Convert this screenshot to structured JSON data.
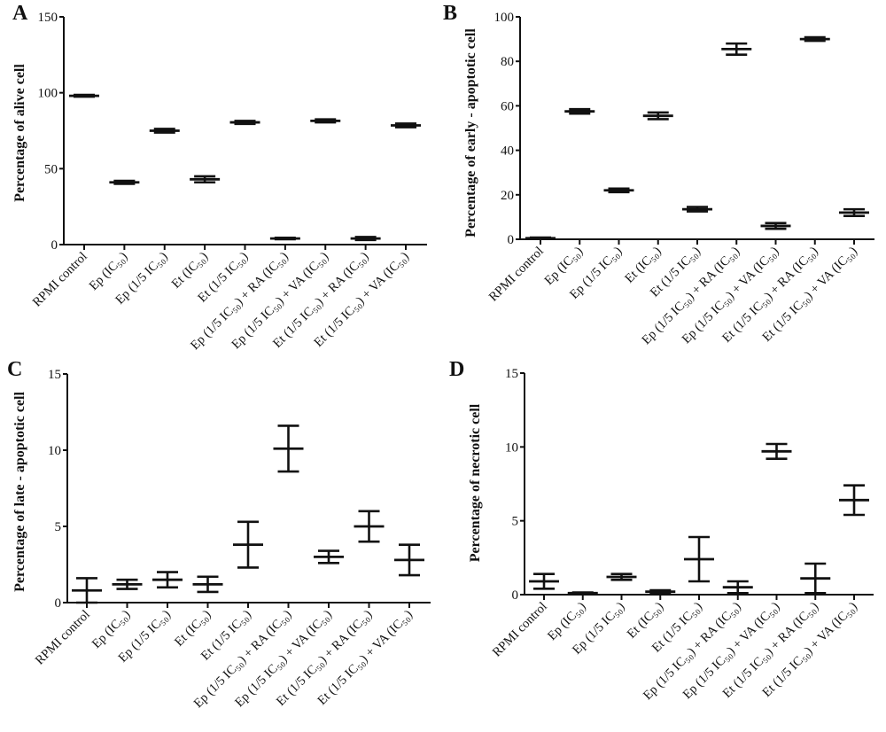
{
  "chart_data": [
    {
      "panel": "A",
      "type": "scatter",
      "ylabel": "Percentage of alive cell",
      "ylim": [
        0,
        150
      ],
      "yticks": [
        0,
        50,
        100,
        150
      ],
      "categories": [
        "RPMI control",
        "Ep (IC₅₀)",
        "Ep (1/5 IC₅₀)",
        "Et (IC₅₀)",
        "Et (1/5 IC₅₀)",
        "Ep (1/5 IC₅₀) + RA (IC₅₀)",
        "Ep (1/5 IC₅₀) + VA (IC₅₀)",
        "Et (1/5 IC₅₀) + RA (IC₅₀)",
        "Et (1/5 IC₅₀) + VA (IC₅₀)"
      ],
      "values": [
        98,
        41,
        75,
        43,
        80.5,
        4,
        81.5,
        4,
        78.5
      ],
      "errors": [
        0.6,
        1,
        1.2,
        2,
        1,
        0.5,
        1,
        1,
        1.2
      ]
    },
    {
      "panel": "B",
      "type": "scatter",
      "ylabel": "Percentage of early - apoptotic cell",
      "ylim": [
        0,
        100
      ],
      "yticks": [
        0,
        20,
        40,
        60,
        80,
        100
      ],
      "categories": [
        "RPMI control",
        "Ep (IC₅₀)",
        "Ep (1/5 IC₅₀)",
        "Et (IC₅₀)",
        "Et (1/5 IC₅₀)",
        "Ep (1/5 IC₅₀) + RA (IC₅₀)",
        "Ep (1/5 IC₅₀) + VA (IC₅₀)",
        "Et (1/5 IC₅₀) + RA (IC₅₀)",
        "Et (1/5 IC₅₀) + VA (IC₅₀)"
      ],
      "values": [
        0.5,
        57.5,
        22,
        55.5,
        13.5,
        85.5,
        6,
        90,
        12
      ],
      "errors": [
        0.3,
        1,
        0.8,
        1.5,
        1,
        2.5,
        1.3,
        0.8,
        1.5
      ]
    },
    {
      "panel": "C",
      "type": "scatter",
      "ylabel": "Percentage of  late - apoptotic cell",
      "ylim": [
        0,
        15
      ],
      "yticks": [
        0,
        5,
        10,
        15
      ],
      "categories": [
        "RPMI control",
        "Ep (IC₅₀)",
        "Ep (1/5 IC₅₀)",
        "Et (IC₅₀)",
        "Et (1/5 IC₅₀)",
        "Ep (1/5 IC₅₀) + RA (IC₅₀)",
        "Ep (1/5 IC₅₀) + VA (IC₅₀)",
        "Et (1/5 IC₅₀) + RA (IC₅₀)",
        "Et (1/5 IC₅₀) + VA (IC₅₀)"
      ],
      "values": [
        0.8,
        1.2,
        1.5,
        1.2,
        3.8,
        10.1,
        3.0,
        5.0,
        2.8
      ],
      "errors": [
        0.8,
        0.3,
        0.5,
        0.5,
        1.5,
        1.5,
        0.4,
        1.0,
        1.0
      ]
    },
    {
      "panel": "D",
      "type": "scatter",
      "ylabel": "Percentage of necrotic cell",
      "ylim": [
        0,
        15
      ],
      "yticks": [
        0,
        5,
        10,
        15
      ],
      "categories": [
        "RPMI control",
        "Ep (IC₅₀)",
        "Ep (1/5 IC₅₀)",
        "Et (IC₅₀)",
        "Et (1/5 IC₅₀)",
        "Ep (1/5 IC₅₀) + RA (IC₅₀)",
        "Ep (1/5 IC₅₀) + VA (IC₅₀)",
        "Et (1/5 IC₅₀) + RA (IC₅₀)",
        "Et (1/5 IC₅₀) + VA (IC₅₀)"
      ],
      "values": [
        0.9,
        0.1,
        1.2,
        0.2,
        2.4,
        0.5,
        9.7,
        1.1,
        6.4
      ],
      "errors": [
        0.5,
        0.05,
        0.2,
        0.1,
        1.5,
        0.4,
        0.5,
        1.0,
        1.0
      ]
    }
  ]
}
